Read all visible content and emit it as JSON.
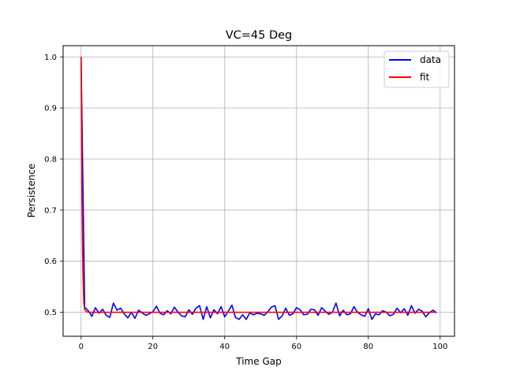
{
  "chart_data": {
    "type": "line",
    "title": "VC=45 Deg",
    "xlabel": "Time Gap",
    "ylabel": "Persistence",
    "xlim": [
      -5,
      104
    ],
    "ylim": [
      0.453,
      1.022
    ],
    "xticks": [
      0,
      20,
      40,
      60,
      80,
      100
    ],
    "yticks": [
      0.5,
      0.6,
      0.7,
      0.8,
      0.9,
      1.0
    ],
    "xtick_labels": [
      "0",
      "20",
      "40",
      "60",
      "80",
      "100"
    ],
    "ytick_labels": [
      "0.5",
      "0.6",
      "0.7",
      "0.8",
      "0.9",
      "1.0"
    ],
    "grid": true,
    "legend_position": "top-right",
    "series": [
      {
        "name": "data",
        "color": "#0000ff",
        "x": [
          0,
          1,
          2,
          3,
          4,
          5,
          6,
          7,
          8,
          9,
          10,
          11,
          12,
          13,
          14,
          15,
          16,
          17,
          18,
          19,
          20,
          21,
          22,
          23,
          24,
          25,
          26,
          27,
          28,
          29,
          30,
          31,
          32,
          33,
          34,
          35,
          36,
          37,
          38,
          39,
          40,
          41,
          42,
          43,
          44,
          45,
          46,
          47,
          48,
          49,
          50,
          51,
          52,
          53,
          54,
          55,
          56,
          57,
          58,
          59,
          60,
          61,
          62,
          63,
          64,
          65,
          66,
          67,
          68,
          69,
          70,
          71,
          72,
          73,
          74,
          75,
          76,
          77,
          78,
          79,
          80,
          81,
          82,
          83,
          84,
          85,
          86,
          87,
          88,
          89,
          90,
          91,
          92,
          93,
          94,
          95,
          96,
          97,
          98,
          99
        ],
        "y": [
          1.0,
          0.51,
          0.503,
          0.492,
          0.509,
          0.498,
          0.506,
          0.494,
          0.49,
          0.518,
          0.504,
          0.508,
          0.497,
          0.489,
          0.5,
          0.488,
          0.504,
          0.499,
          0.494,
          0.497,
          0.501,
          0.512,
          0.498,
          0.495,
          0.503,
          0.497,
          0.51,
          0.5,
          0.493,
          0.491,
          0.505,
          0.496,
          0.508,
          0.513,
          0.486,
          0.511,
          0.489,
          0.505,
          0.497,
          0.511,
          0.491,
          0.502,
          0.514,
          0.49,
          0.486,
          0.495,
          0.486,
          0.499,
          0.495,
          0.498,
          0.497,
          0.494,
          0.501,
          0.51,
          0.513,
          0.486,
          0.493,
          0.508,
          0.494,
          0.497,
          0.509,
          0.505,
          0.495,
          0.496,
          0.506,
          0.505,
          0.494,
          0.509,
          0.502,
          0.496,
          0.5,
          0.518,
          0.493,
          0.504,
          0.495,
          0.497,
          0.511,
          0.5,
          0.495,
          0.492,
          0.507,
          0.486,
          0.497,
          0.495,
          0.503,
          0.5,
          0.493,
          0.496,
          0.508,
          0.499,
          0.507,
          0.494,
          0.513,
          0.498,
          0.506,
          0.502,
          0.491,
          0.499,
          0.504,
          0.499
        ]
      },
      {
        "name": "fit",
        "color": "#ff0000",
        "x": [
          0,
          0.25,
          0.5,
          0.75,
          1,
          1.5,
          2,
          3,
          5,
          10,
          20,
          30,
          40,
          50,
          60,
          70,
          80,
          90,
          99
        ],
        "y": [
          1.0,
          0.72,
          0.58,
          0.52,
          0.505,
          0.501,
          0.5,
          0.5,
          0.5,
          0.5,
          0.5,
          0.5,
          0.5,
          0.5,
          0.5,
          0.5,
          0.5,
          0.5,
          0.5
        ]
      }
    ]
  }
}
